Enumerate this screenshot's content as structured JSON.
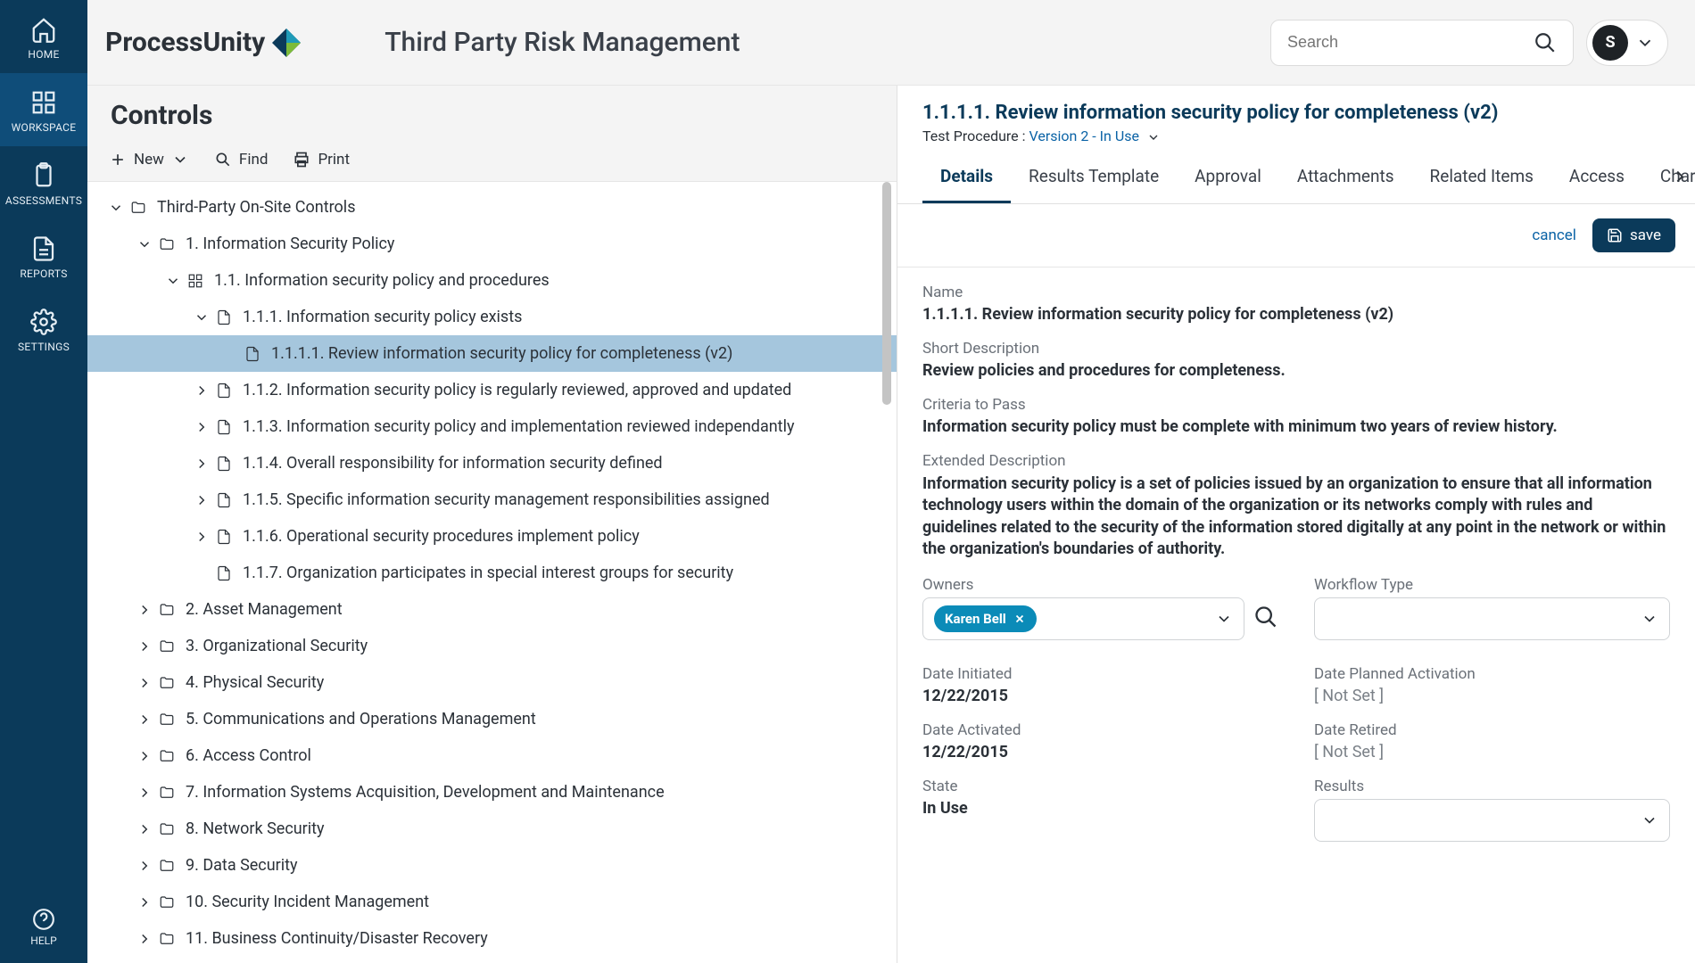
{
  "colors": {
    "rail_bg": "#0b3a5a",
    "rail_active_bg": "#0f4d79",
    "header_bg": "#f4f4f4",
    "accent": "#0b3a5a",
    "link": "#0b63a6",
    "selected_row_bg": "#a5c6dd",
    "chip_bg": "#0b8bb8",
    "border": "#e0e0e0",
    "text": "#2b3138",
    "muted": "#6a7078"
  },
  "rail": {
    "items": [
      {
        "label": "HOME"
      },
      {
        "label": "WORKSPACE",
        "active": true
      },
      {
        "label": "ASSESSMENTS"
      },
      {
        "label": "REPORTS"
      },
      {
        "label": "SETTINGS"
      }
    ],
    "help": "HELP"
  },
  "header": {
    "logo_text": "ProcessUnity",
    "app_title": "Third Party Risk Management",
    "search_placeholder": "Search",
    "avatar_initial": "S"
  },
  "left": {
    "title": "Controls",
    "toolbar": {
      "new": "New",
      "find": "Find",
      "print": "Print"
    },
    "tree": [
      {
        "depth": 0,
        "icon": "folder",
        "label": "Third-Party On-Site Controls",
        "expanded": true
      },
      {
        "depth": 1,
        "icon": "folder",
        "label": "1. Information Security Policy",
        "expanded": true
      },
      {
        "depth": 2,
        "icon": "grid",
        "label": "1.1. Information security policy and procedures",
        "expanded": true
      },
      {
        "depth": 3,
        "icon": "doc",
        "label": "1.1.1. Information security policy exists",
        "expanded": true
      },
      {
        "depth": 4,
        "icon": "doc",
        "label": "1.1.1.1. Review information security policy for completeness (v2)",
        "selected": true,
        "leaf": true
      },
      {
        "depth": 3,
        "icon": "doc",
        "label": "1.1.2. Information security policy is regularly reviewed, approved and updated"
      },
      {
        "depth": 3,
        "icon": "doc",
        "label": "1.1.3. Information security policy and implementation reviewed independantly"
      },
      {
        "depth": 3,
        "icon": "doc",
        "label": "1.1.4. Overall responsibility for information security defined"
      },
      {
        "depth": 3,
        "icon": "doc",
        "label": "1.1.5. Specific information security management responsibilities assigned"
      },
      {
        "depth": 3,
        "icon": "doc",
        "label": "1.1.6. Operational security procedures implement policy"
      },
      {
        "depth": 3,
        "icon": "doc",
        "label": "1.1.7. Organization participates in special interest groups for security",
        "leaf": true
      },
      {
        "depth": 1,
        "icon": "folder",
        "label": "2. Asset Management"
      },
      {
        "depth": 1,
        "icon": "folder",
        "label": "3. Organizational Security"
      },
      {
        "depth": 1,
        "icon": "folder",
        "label": "4. Physical Security"
      },
      {
        "depth": 1,
        "icon": "folder",
        "label": "5. Communications and Operations Management"
      },
      {
        "depth": 1,
        "icon": "folder",
        "label": "6. Access Control"
      },
      {
        "depth": 1,
        "icon": "folder",
        "label": "7. Information Systems Acquisition, Development and Maintenance"
      },
      {
        "depth": 1,
        "icon": "folder",
        "label": "8. Network Security"
      },
      {
        "depth": 1,
        "icon": "folder",
        "label": "9. Data Security"
      },
      {
        "depth": 1,
        "icon": "folder",
        "label": "10. Security Incident Management"
      },
      {
        "depth": 1,
        "icon": "folder",
        "label": "11. Business Continuity/Disaster Recovery"
      }
    ]
  },
  "detail": {
    "title": "1.1.1.1. Review information security policy for completeness (v2)",
    "subtype_label": "Test Procedure : ",
    "version_link": "Version 2 - In Use",
    "tabs": [
      "Details",
      "Results Template",
      "Approval",
      "Attachments",
      "Related Items",
      "Access",
      "Char"
    ],
    "active_tab": 0,
    "actions": {
      "cancel": "cancel",
      "save": "save"
    },
    "name_label": "Name",
    "name_value": "1.1.1.1. Review information security policy for completeness (v2)",
    "short_desc_label": "Short Description",
    "short_desc_value": "Review policies and procedures for completeness.",
    "criteria_label": "Criteria to Pass",
    "criteria_value": "Information security policy must be complete with minimum two years of review history.",
    "ext_desc_label": "Extended Description",
    "ext_desc_value": "Information security policy is a set of policies issued by an organization to ensure that all information technology users within the domain of the organization or its networks comply with rules and guidelines related to the security of the information stored digitally at any point in the network or within the organization's boundaries of authority.",
    "owners_label": "Owners",
    "owners_chip": "Karen Bell",
    "workflow_label": "Workflow Type",
    "date_initiated_label": "Date Initiated",
    "date_initiated_value": "12/22/2015",
    "date_planned_label": "Date Planned Activation",
    "date_planned_value": "[ Not Set ]",
    "date_activated_label": "Date Activated",
    "date_activated_value": "12/22/2015",
    "date_retired_label": "Date Retired",
    "date_retired_value": "[ Not Set ]",
    "state_label": "State",
    "state_value": "In Use",
    "results_label": "Results"
  }
}
